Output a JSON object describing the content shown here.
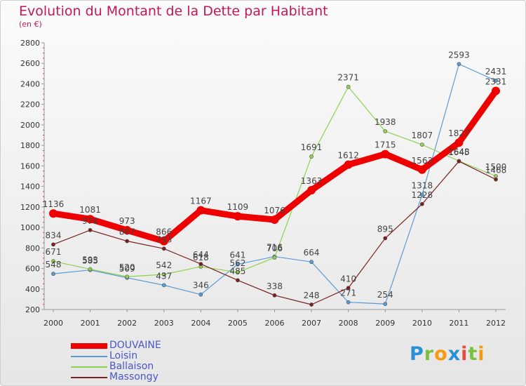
{
  "title": "Evolution du Montant de la Dette par Habitant",
  "subtitle": "(en €)",
  "brand": {
    "letters": [
      {
        "ch": "P",
        "color": "#2b8fd6"
      },
      {
        "ch": "r",
        "color": "#7ac142"
      },
      {
        "ch": "o",
        "color": "#f39c12"
      },
      {
        "ch": "x",
        "color": "#2b8fd6"
      },
      {
        "ch": "i",
        "color": "#e74c3c"
      },
      {
        "ch": "t",
        "color": "#7ac142"
      },
      {
        "ch": "i",
        "color": "#f39c12"
      }
    ]
  },
  "chart_data": {
    "type": "line",
    "x": [
      "2000",
      "2001",
      "2002",
      "2003",
      "2004",
      "2005",
      "2006",
      "2007",
      "2008",
      "2009",
      "2010",
      "2011",
      "2012"
    ],
    "ylim": [
      200,
      2800
    ],
    "yticks": [
      200,
      400,
      600,
      800,
      1000,
      1200,
      1400,
      1600,
      1800,
      2000,
      2200,
      2400,
      2600,
      2800
    ],
    "grid": false,
    "legend_position": "bottom-left",
    "series": [
      {
        "name": "DOUVAINE",
        "color": "#ee0000",
        "width": 9,
        "marker": 6,
        "values": [
          1136,
          1081,
          973,
          866,
          1167,
          1109,
          1076,
          1363,
          1612,
          1715,
          1563,
          1827,
          2331
        ]
      },
      {
        "name": "Loisin",
        "color": "#5b9bd5",
        "width": 1.2,
        "marker": 2.6,
        "values": [
          548,
          585,
          509,
          437,
          346,
          641,
          716,
          664,
          271,
          254,
          1318,
          2593,
          2431
        ]
      },
      {
        "name": "Ballaison",
        "color": "#8fd14f",
        "width": 1.2,
        "marker": 2.6,
        "values": [
          671,
          593,
          520,
          542,
          618,
          562,
          706,
          1691,
          2371,
          1938,
          1807,
          1648,
          1500
        ]
      },
      {
        "name": "Massongy",
        "color": "#7a2020",
        "width": 1.2,
        "marker": 2.6,
        "values": [
          834,
          974,
          867,
          793,
          644,
          485,
          338,
          248,
          410,
          895,
          1228,
          1645,
          1468
        ]
      }
    ]
  }
}
